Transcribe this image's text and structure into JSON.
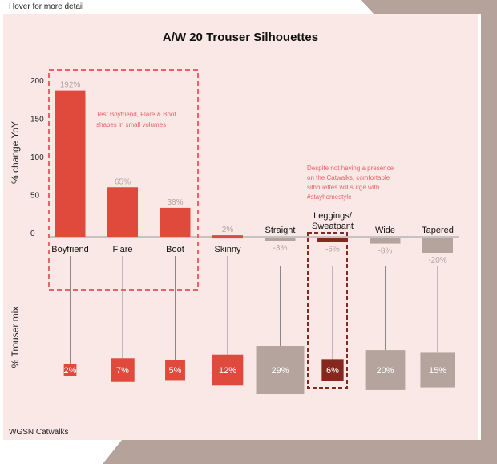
{
  "hint": "Hover for more detail",
  "source": "WGSN Catwalks",
  "colors": {
    "panel": "#f9e8e6",
    "backdrop": "#b5a39b",
    "red": "#e04a3c",
    "dark": "#85291f",
    "grey": "#b5a49e",
    "bg": "#ffffff"
  },
  "chart_data": {
    "type": "bar",
    "title": "A/W 20 Trouser Silhouettes",
    "ylabel": "% change YoY",
    "ylabel2": "% Trouser mix",
    "ylim": [
      0,
      200
    ],
    "yticks": [
      0,
      50,
      100,
      150,
      200
    ],
    "categories": [
      {
        "name": "Boyfriend",
        "label": [
          "Boyfriend"
        ],
        "yoy": 192,
        "yoy_label": "192%",
        "mix": 2,
        "mix_label": "2%",
        "color": "red"
      },
      {
        "name": "Flare",
        "label": [
          "Flare"
        ],
        "yoy": 65,
        "yoy_label": "65%",
        "mix": 7,
        "mix_label": "7%",
        "color": "red"
      },
      {
        "name": "Boot",
        "label": [
          "Boot"
        ],
        "yoy": 38,
        "yoy_label": "38%",
        "mix": 5,
        "mix_label": "5%",
        "color": "red"
      },
      {
        "name": "Skinny",
        "label": [
          "Skinny"
        ],
        "yoy": 2,
        "yoy_label": "2%",
        "mix": 12,
        "mix_label": "12%",
        "color": "red"
      },
      {
        "name": "Straight",
        "label": [
          "Straight"
        ],
        "yoy": -3,
        "yoy_label": "-3%",
        "mix": 29,
        "mix_label": "29%",
        "color": "grey"
      },
      {
        "name": "Leggings/Sweatpant",
        "label": [
          "Leggings/",
          "Sweatpant"
        ],
        "yoy": -6,
        "yoy_label": "-6%",
        "mix": 6,
        "mix_label": "6%",
        "color": "dark"
      },
      {
        "name": "Wide",
        "label": [
          "Wide"
        ],
        "yoy": -8,
        "yoy_label": "-8%",
        "mix": 20,
        "mix_label": "20%",
        "color": "grey"
      },
      {
        "name": "Tapered",
        "label": [
          "Tapered"
        ],
        "yoy": -20,
        "yoy_label": "-20%",
        "mix": 15,
        "mix_label": "15%",
        "color": "grey"
      }
    ],
    "annotations": [
      {
        "text": [
          "Test Boyfriend, Flare & Boot",
          "shapes in small volumes"
        ]
      },
      {
        "text": [
          "Despite not having a presence",
          "on the Catwalks, comfortable",
          "silhouettes will surge with",
          "#stayhomestyle"
        ]
      }
    ]
  }
}
